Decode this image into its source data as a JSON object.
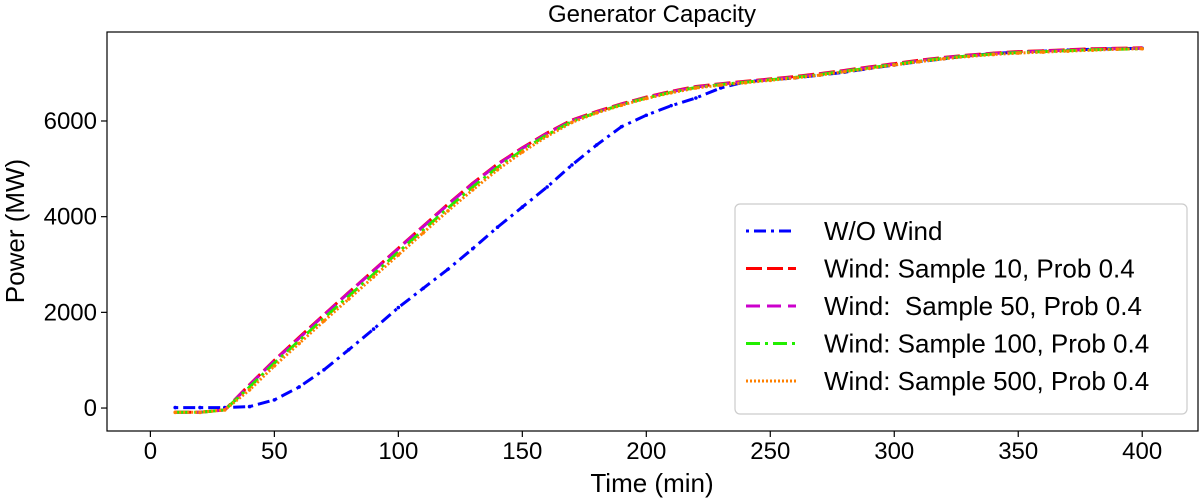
{
  "chart_data": {
    "type": "line",
    "title": "Generator Capacity",
    "xlabel": "Time (min)",
    "ylabel": "Power (MW)",
    "xlim": [
      -17.5,
      422.5
    ],
    "ylim": [
      -480,
      7860
    ],
    "xticks": [
      0,
      50,
      100,
      150,
      200,
      250,
      300,
      350,
      400
    ],
    "yticks": [
      0,
      2000,
      4000,
      6000
    ],
    "grid": false,
    "legend_position": "lower-right",
    "x": [
      10,
      20,
      30,
      40,
      50,
      60,
      70,
      80,
      90,
      100,
      110,
      120,
      130,
      140,
      150,
      160,
      170,
      180,
      190,
      200,
      210,
      220,
      230,
      240,
      250,
      260,
      270,
      280,
      290,
      300,
      310,
      320,
      330,
      340,
      350,
      360,
      370,
      380,
      390,
      400
    ],
    "series": [
      {
        "name": "W/O Wind",
        "color": "#0000ff",
        "dash": "3,5,12,5",
        "marker": true,
        "values": [
          10,
          10,
          10,
          30,
          170,
          440,
          800,
          1220,
          1650,
          2100,
          2500,
          2900,
          3330,
          3780,
          4200,
          4620,
          5080,
          5500,
          5880,
          6120,
          6320,
          6480,
          6690,
          6820,
          6860,
          6900,
          6960,
          7020,
          7100,
          7170,
          7240,
          7300,
          7360,
          7410,
          7440,
          7460,
          7480,
          7500,
          7510,
          7520
        ]
      },
      {
        "name": "Wind: Sample 10, Prob 0.4",
        "color": "#ff0000",
        "dash": "16,5",
        "marker": false,
        "values": [
          -90,
          -90,
          -40,
          490,
          1000,
          1480,
          1950,
          2420,
          2880,
          3340,
          3800,
          4260,
          4700,
          5100,
          5440,
          5750,
          6020,
          6200,
          6360,
          6500,
          6620,
          6720,
          6780,
          6830,
          6880,
          6930,
          6990,
          7060,
          7130,
          7200,
          7270,
          7330,
          7380,
          7420,
          7450,
          7470,
          7490,
          7510,
          7520,
          7530
        ]
      },
      {
        "name": "Wind:  Sample 50, Prob 0.4",
        "color": "#cc00cc",
        "dash": "14,7",
        "marker": false,
        "values": [
          -90,
          -90,
          -40,
          480,
          990,
          1460,
          1940,
          2410,
          2870,
          3330,
          3790,
          4250,
          4690,
          5090,
          5430,
          5740,
          6010,
          6190,
          6350,
          6490,
          6610,
          6710,
          6770,
          6820,
          6870,
          6920,
          6980,
          7050,
          7120,
          7190,
          7260,
          7320,
          7370,
          7410,
          7440,
          7460,
          7480,
          7500,
          7510,
          7520
        ]
      },
      {
        "name": "Wind: Sample 100, Prob 0.4",
        "color": "#22ee00",
        "dash": "14,5,3,5",
        "marker": false,
        "values": [
          -90,
          -90,
          -40,
          440,
          940,
          1410,
          1880,
          2340,
          2800,
          3260,
          3720,
          4180,
          4620,
          5030,
          5390,
          5710,
          5990,
          6180,
          6340,
          6480,
          6600,
          6700,
          6760,
          6810,
          6860,
          6910,
          6970,
          7040,
          7110,
          7180,
          7250,
          7310,
          7360,
          7400,
          7430,
          7450,
          7470,
          7490,
          7500,
          7510
        ]
      },
      {
        "name": "Wind: Sample 500, Prob 0.4",
        "color": "#ff8000",
        "dash": "2,2",
        "marker": true,
        "values": [
          -90,
          -90,
          -40,
          380,
          880,
          1350,
          1820,
          2280,
          2740,
          3200,
          3660,
          4120,
          4560,
          4980,
          5350,
          5680,
          5970,
          6170,
          6330,
          6470,
          6590,
          6690,
          6750,
          6800,
          6850,
          6900,
          6960,
          7030,
          7100,
          7170,
          7240,
          7300,
          7350,
          7390,
          7420,
          7440,
          7460,
          7480,
          7500,
          7510
        ]
      }
    ]
  }
}
